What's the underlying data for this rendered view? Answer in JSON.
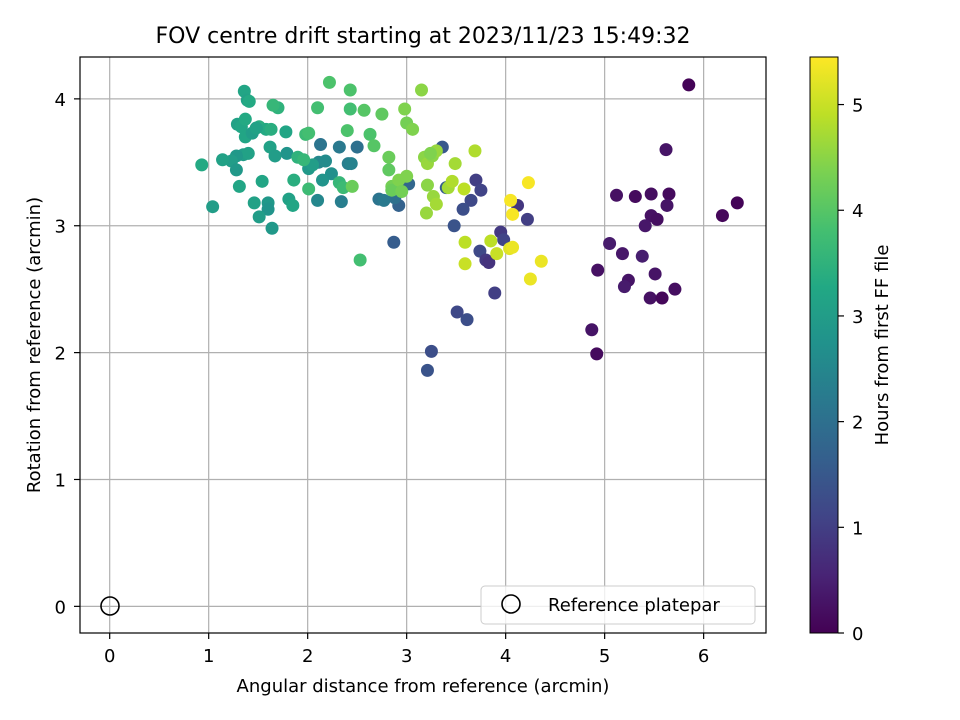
{
  "chart_data": {
    "type": "scatter",
    "title": "FOV centre drift starting at 2023/11/23 15:49:32",
    "xlabel": "Angular distance from reference (arcmin)",
    "ylabel": "Rotation from reference (arcmin)",
    "xlim": [
      -0.3,
      6.63
    ],
    "ylim": [
      -0.21,
      4.33
    ],
    "xticks": [
      0,
      1,
      2,
      3,
      4,
      5,
      6
    ],
    "yticks": [
      0,
      1,
      2,
      3,
      4
    ],
    "grid": true,
    "legend": {
      "placement": "lower right",
      "entries": [
        "Reference platepar"
      ]
    },
    "colorbar": {
      "label": "Hours from first FF file",
      "colormap": "viridis",
      "range": [
        0,
        5.45
      ],
      "ticks": [
        0,
        1,
        2,
        3,
        4,
        5
      ]
    },
    "reference_point": {
      "x": 0,
      "y": 0,
      "label": "Reference platepar"
    },
    "points": [
      [
        5.85,
        4.11,
        0.05
      ],
      [
        6.34,
        3.18,
        0.05
      ],
      [
        6.19,
        3.08,
        0.1
      ],
      [
        5.65,
        3.25,
        0.15
      ],
      [
        5.47,
        3.25,
        0.2
      ],
      [
        5.31,
        3.23,
        0.15
      ],
      [
        5.12,
        3.24,
        0.25
      ],
      [
        5.63,
        3.16,
        0.3
      ],
      [
        5.47,
        3.08,
        0.25
      ],
      [
        5.53,
        3.05,
        0.2
      ],
      [
        5.41,
        3.0,
        0.35
      ],
      [
        5.62,
        3.6,
        0.3
      ],
      [
        5.05,
        2.86,
        0.4
      ],
      [
        5.18,
        2.78,
        0.35
      ],
      [
        5.38,
        2.76,
        0.45
      ],
      [
        4.93,
        2.65,
        0.25
      ],
      [
        5.24,
        2.57,
        0.3
      ],
      [
        5.2,
        2.52,
        0.4
      ],
      [
        5.51,
        2.62,
        0.3
      ],
      [
        5.71,
        2.5,
        0.2
      ],
      [
        5.46,
        2.43,
        0.25
      ],
      [
        5.58,
        2.43,
        0.1
      ],
      [
        4.87,
        2.18,
        0.3
      ],
      [
        4.92,
        1.99,
        0.15
      ],
      [
        3.7,
        3.36,
        1.0
      ],
      [
        3.75,
        3.28,
        1.1
      ],
      [
        3.65,
        3.2,
        1.2
      ],
      [
        3.57,
        3.13,
        1.3
      ],
      [
        3.48,
        3.0,
        1.4
      ],
      [
        4.12,
        3.16,
        0.85
      ],
      [
        4.22,
        3.05,
        1.0
      ],
      [
        3.95,
        2.95,
        0.9
      ],
      [
        3.98,
        2.89,
        1.1
      ],
      [
        3.74,
        2.8,
        1.2
      ],
      [
        3.8,
        2.73,
        0.9
      ],
      [
        3.83,
        2.71,
        0.8
      ],
      [
        3.89,
        2.47,
        1.0
      ],
      [
        3.51,
        2.32,
        1.2
      ],
      [
        3.61,
        2.26,
        1.3
      ],
      [
        3.25,
        2.01,
        1.3
      ],
      [
        3.21,
        1.86,
        1.4
      ],
      [
        2.87,
        2.87,
        1.6
      ],
      [
        2.92,
        3.16,
        1.7
      ],
      [
        3.36,
        3.62,
        1.5
      ],
      [
        3.4,
        3.3,
        1.6
      ],
      [
        3.02,
        3.33,
        1.8
      ],
      [
        2.88,
        3.22,
        2.0
      ],
      [
        2.72,
        3.21,
        2.1
      ],
      [
        2.77,
        3.2,
        2.2
      ],
      [
        2.34,
        3.19,
        2.3
      ],
      [
        2.5,
        3.62,
        2.0
      ],
      [
        2.13,
        3.64,
        2.1
      ],
      [
        2.32,
        3.62,
        2.2
      ],
      [
        2.41,
        3.49,
        2.3
      ],
      [
        2.44,
        3.49,
        2.4
      ],
      [
        2.11,
        3.5,
        2.5
      ],
      [
        2.18,
        3.51,
        2.6
      ],
      [
        2.24,
        3.41,
        2.7
      ],
      [
        2.15,
        3.36,
        2.8
      ],
      [
        2.1,
        3.2,
        2.5
      ],
      [
        2.01,
        3.45,
        2.9
      ],
      [
        2.05,
        3.48,
        3.0
      ],
      [
        1.29,
        3.8,
        3.1
      ],
      [
        1.33,
        3.78,
        3.2
      ],
      [
        1.37,
        3.84,
        3.3
      ],
      [
        1.36,
        4.06,
        3.2
      ],
      [
        1.39,
        3.99,
        3.1
      ],
      [
        1.41,
        3.98,
        3.3
      ],
      [
        1.51,
        3.78,
        3.4
      ],
      [
        1.58,
        3.76,
        3.3
      ],
      [
        1.63,
        3.76,
        3.4
      ],
      [
        1.7,
        3.93,
        3.5
      ],
      [
        1.65,
        3.95,
        3.6
      ],
      [
        1.37,
        3.7,
        3.2
      ],
      [
        1.44,
        3.73,
        3.0
      ],
      [
        1.48,
        3.77,
        3.1
      ],
      [
        1.35,
        3.56,
        3.0
      ],
      [
        1.4,
        3.57,
        3.1
      ],
      [
        1.28,
        3.55,
        2.9
      ],
      [
        1.23,
        3.51,
        3.0
      ],
      [
        1.14,
        3.52,
        3.1
      ],
      [
        1.28,
        3.44,
        2.9
      ],
      [
        0.93,
        3.48,
        3.3
      ],
      [
        1.31,
        3.31,
        3.2
      ],
      [
        1.04,
        3.15,
        3.0
      ],
      [
        1.46,
        3.18,
        3.1
      ],
      [
        1.54,
        3.35,
        3.2
      ],
      [
        1.6,
        3.18,
        2.9
      ],
      [
        1.6,
        3.13,
        2.8
      ],
      [
        1.51,
        3.07,
        3.0
      ],
      [
        1.64,
        2.98,
        2.9
      ],
      [
        1.62,
        3.62,
        3.1
      ],
      [
        1.67,
        3.55,
        3.0
      ],
      [
        1.79,
        3.57,
        2.8
      ],
      [
        1.78,
        3.74,
        3.2
      ],
      [
        1.81,
        3.21,
        3.1
      ],
      [
        1.85,
        3.16,
        3.2
      ],
      [
        1.86,
        3.36,
        3.4
      ],
      [
        1.9,
        3.54,
        3.5
      ],
      [
        1.96,
        3.52,
        3.6
      ],
      [
        1.98,
        3.72,
        3.7
      ],
      [
        2.01,
        3.73,
        3.8
      ],
      [
        2.01,
        3.29,
        3.7
      ],
      [
        2.1,
        3.93,
        3.8
      ],
      [
        2.22,
        4.13,
        3.9
      ],
      [
        2.32,
        3.34,
        3.6
      ],
      [
        2.36,
        3.3,
        3.7
      ],
      [
        2.43,
        4.07,
        3.9
      ],
      [
        2.43,
        3.92,
        3.8
      ],
      [
        2.4,
        3.75,
        3.9
      ],
      [
        2.57,
        3.91,
        4.0
      ],
      [
        2.63,
        3.72,
        3.9
      ],
      [
        2.67,
        3.63,
        4.0
      ],
      [
        2.53,
        2.73,
        3.8
      ],
      [
        2.75,
        3.88,
        4.1
      ],
      [
        2.82,
        3.54,
        4.2
      ],
      [
        2.82,
        3.44,
        4.1
      ],
      [
        2.85,
        3.31,
        4.3
      ],
      [
        2.85,
        3.28,
        4.2
      ],
      [
        2.92,
        3.36,
        4.4
      ],
      [
        2.95,
        3.27,
        4.3
      ],
      [
        2.98,
        3.92,
        4.4
      ],
      [
        3.0,
        3.81,
        4.3
      ],
      [
        3.06,
        3.76,
        4.4
      ],
      [
        3.0,
        3.39,
        4.4
      ],
      [
        2.45,
        3.31,
        4.2
      ],
      [
        3.15,
        4.07,
        4.5
      ],
      [
        3.18,
        3.54,
        4.5
      ],
      [
        3.21,
        3.49,
        4.6
      ],
      [
        3.26,
        3.55,
        4.5
      ],
      [
        3.3,
        3.59,
        4.6
      ],
      [
        3.24,
        3.57,
        4.4
      ],
      [
        3.21,
        3.32,
        4.5
      ],
      [
        3.27,
        3.23,
        4.6
      ],
      [
        3.3,
        3.17,
        4.7
      ],
      [
        3.2,
        3.1,
        4.6
      ],
      [
        3.42,
        3.3,
        4.7
      ],
      [
        3.46,
        3.35,
        4.8
      ],
      [
        3.49,
        3.49,
        4.7
      ],
      [
        3.58,
        3.29,
        4.9
      ],
      [
        3.69,
        3.59,
        4.8
      ],
      [
        3.59,
        2.87,
        4.9
      ],
      [
        3.59,
        2.7,
        5.0
      ],
      [
        3.85,
        2.88,
        4.9
      ],
      [
        3.91,
        2.78,
        5.0
      ],
      [
        4.04,
        2.82,
        5.2
      ],
      [
        4.07,
        2.83,
        5.3
      ],
      [
        4.25,
        2.58,
        5.3
      ],
      [
        4.36,
        2.72,
        5.3
      ],
      [
        4.05,
        3.2,
        5.4
      ],
      [
        4.07,
        3.09,
        5.4
      ],
      [
        4.23,
        3.34,
        5.4
      ]
    ]
  },
  "colors": {
    "reference_marker": "#000000",
    "grid": "#b0b0b0",
    "axes": "#000000"
  }
}
